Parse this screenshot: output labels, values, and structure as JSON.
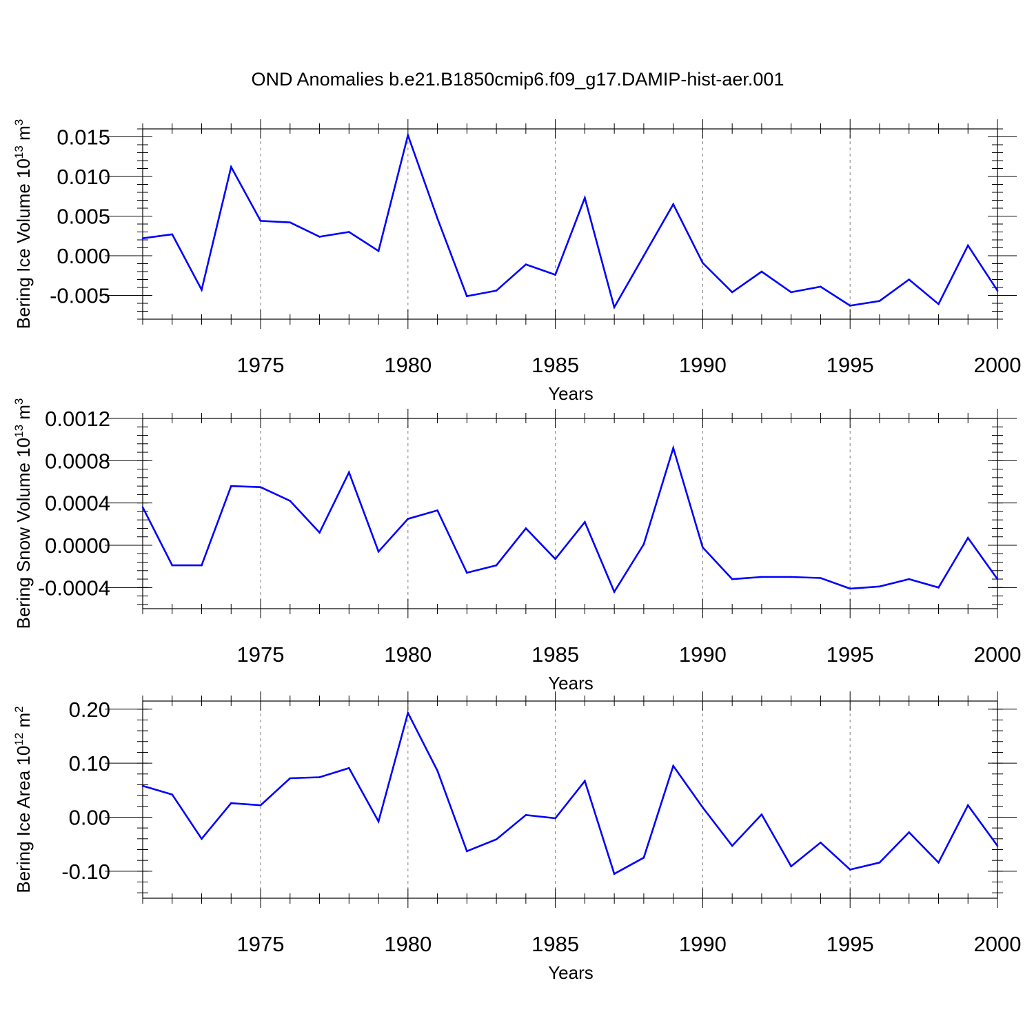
{
  "figure": {
    "title": "OND Anomalies b.e21.B1850cmip6.f09_g17.DAMIP-hist-aer.001"
  },
  "colors": {
    "series": "#0000ff",
    "axis": "#000000",
    "grid": "#7f7f7f"
  },
  "chart_data": [
    {
      "type": "line",
      "title": "",
      "xlabel": "Years",
      "ylabel": {
        "text": "Bering Ice Volume 10",
        "sup": "13",
        "unit": " m",
        "unit_sup": "3"
      },
      "xlim": [
        1971,
        2000
      ],
      "ylim": [
        -0.008,
        0.016
      ],
      "x_ticks": [
        1975,
        1980,
        1985,
        1990,
        1995,
        2000
      ],
      "y_ticks": [
        -0.005,
        0.0,
        0.005,
        0.01,
        0.015
      ],
      "y_tick_labels": [
        "-0.005",
        "0.000",
        "0.005",
        "0.010",
        "0.015"
      ],
      "x_grid": true,
      "x": [
        1971,
        1972,
        1973,
        1974,
        1975,
        1976,
        1977,
        1978,
        1979,
        1980,
        1981,
        1982,
        1983,
        1984,
        1985,
        1986,
        1987,
        1988,
        1989,
        1990,
        1991,
        1992,
        1993,
        1994,
        1995,
        1996,
        1997,
        1998,
        1999,
        2000
      ],
      "values": [
        0.0022,
        0.0027,
        -0.0043,
        0.0112,
        0.0044,
        0.0042,
        0.0024,
        0.003,
        0.0006,
        0.0152,
        0.0047,
        -0.0051,
        -0.0044,
        -0.0011,
        -0.0024,
        0.0073,
        -0.0065,
        0.0,
        0.0065,
        -0.0009,
        -0.0046,
        -0.002,
        -0.0046,
        -0.0039,
        -0.0063,
        -0.0057,
        -0.003,
        -0.0061,
        0.0013,
        -0.0044
      ]
    },
    {
      "type": "line",
      "title": "",
      "xlabel": "Years",
      "ylabel": {
        "text": "Bering Snow Volume 10",
        "sup": "13",
        "unit": " m",
        "unit_sup": "3"
      },
      "xlim": [
        1971,
        2000
      ],
      "ylim": [
        -0.0006,
        0.0012
      ],
      "x_ticks": [
        1975,
        1980,
        1985,
        1990,
        1995,
        2000
      ],
      "y_ticks": [
        -0.0004,
        0.0,
        0.0004,
        0.0008,
        0.0012
      ],
      "y_tick_labels": [
        "-0.0004",
        "0.0000",
        "0.0004",
        "0.0008",
        "0.0012"
      ],
      "x_grid": true,
      "x": [
        1971,
        1972,
        1973,
        1974,
        1975,
        1976,
        1977,
        1978,
        1979,
        1980,
        1981,
        1982,
        1983,
        1984,
        1985,
        1986,
        1987,
        1988,
        1989,
        1990,
        1991,
        1992,
        1993,
        1994,
        1995,
        1996,
        1997,
        1998,
        1999,
        2000
      ],
      "values": [
        0.00036,
        -0.00019,
        -0.00019,
        0.00056,
        0.00055,
        0.00042,
        0.00012,
        0.00069,
        -6e-05,
        0.00025,
        0.00033,
        -0.00026,
        -0.00019,
        0.00016,
        -0.00013,
        0.00022,
        -0.00044,
        1e-05,
        0.00092,
        -2e-05,
        -0.00032,
        -0.0003,
        -0.0003,
        -0.00031,
        -0.00041,
        -0.00039,
        -0.00032,
        -0.0004,
        7e-05,
        -0.00032
      ]
    },
    {
      "type": "line",
      "title": "",
      "xlabel": "Years",
      "ylabel": {
        "text": "Bering Ice Area 10",
        "sup": "12",
        "unit": " m",
        "unit_sup": "2"
      },
      "xlim": [
        1971,
        2000
      ],
      "ylim": [
        -0.15,
        0.215
      ],
      "x_ticks": [
        1975,
        1980,
        1985,
        1990,
        1995,
        2000
      ],
      "y_ticks": [
        -0.1,
        0.0,
        0.1,
        0.2
      ],
      "y_tick_labels": [
        "-0.10",
        "0.00",
        "0.10",
        "0.20"
      ],
      "x_grid": true,
      "x": [
        1971,
        1972,
        1973,
        1974,
        1975,
        1976,
        1977,
        1978,
        1979,
        1980,
        1981,
        1982,
        1983,
        1984,
        1985,
        1986,
        1987,
        1988,
        1989,
        1990,
        1991,
        1992,
        1993,
        1994,
        1995,
        1996,
        1997,
        1998,
        1999,
        2000
      ],
      "values": [
        0.058,
        0.042,
        -0.04,
        0.026,
        0.022,
        0.072,
        0.074,
        0.091,
        -0.008,
        0.193,
        0.086,
        -0.063,
        -0.041,
        0.004,
        -0.002,
        0.067,
        -0.105,
        -0.075,
        0.095,
        0.018,
        -0.053,
        0.005,
        -0.091,
        -0.047,
        -0.097,
        -0.084,
        -0.028,
        -0.084,
        0.022,
        -0.053
      ]
    }
  ]
}
